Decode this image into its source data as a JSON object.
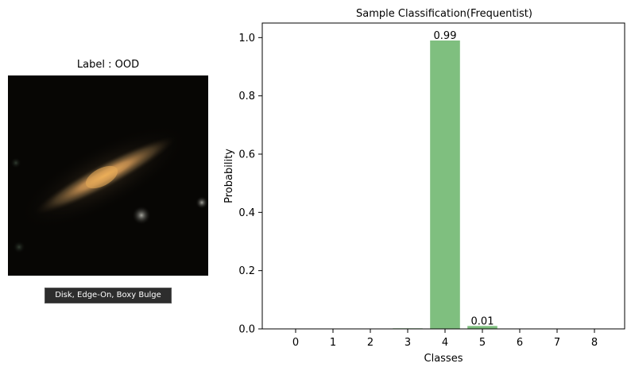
{
  "image_panel": {
    "title": "Label : OOD",
    "caption": "Disk, Edge-On, Boxy Bulge",
    "subject": "edge-on-disk-galaxy"
  },
  "chart_data": {
    "type": "bar",
    "title": "Sample Classification(Frequentist)",
    "xlabel": "Classes",
    "ylabel": "Probability",
    "categories": [
      "0",
      "1",
      "2",
      "3",
      "4",
      "5",
      "6",
      "7",
      "8"
    ],
    "values": [
      0.0,
      0.0,
      0.0,
      0.002,
      0.99,
      0.01,
      0.0,
      0.0,
      0.0
    ],
    "data_labels": [
      {
        "index": 4,
        "text": "0.99"
      },
      {
        "index": 5,
        "text": "0.01"
      }
    ],
    "ylim": [
      0,
      1.05
    ],
    "yticks": [
      "0.0",
      "0.2",
      "0.4",
      "0.6",
      "0.8",
      "1.0"
    ],
    "bar_color": "#7fbf7f",
    "grid": false
  }
}
